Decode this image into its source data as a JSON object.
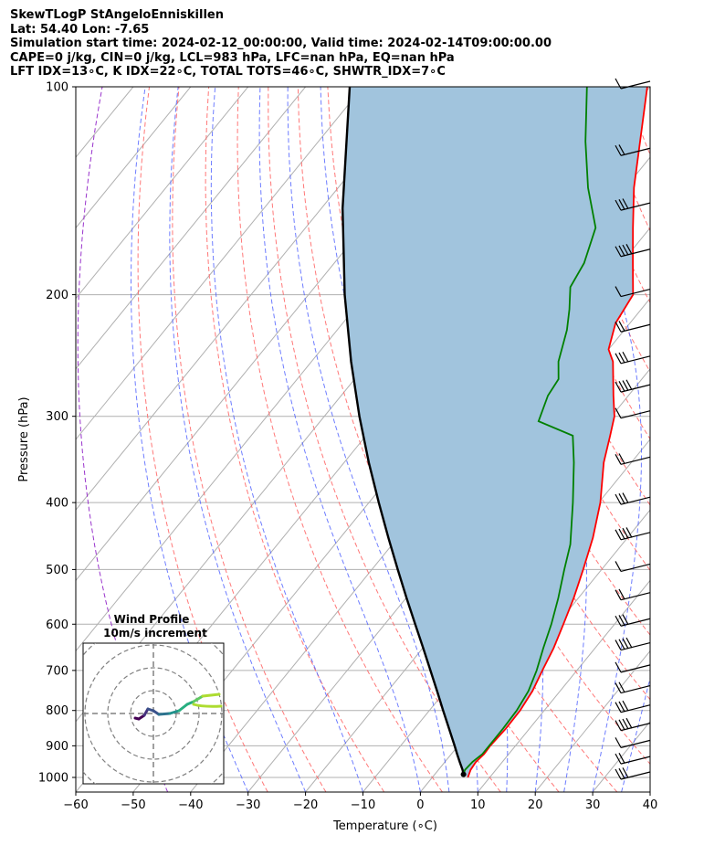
{
  "header": {
    "title": "SkewTLogP StAngeloEnniskillen",
    "location": "Lat: 54.40   Lon: -7.65",
    "times": "Simulation start time: 2024-02-12_00:00:00, Valid time: 2024-02-14T09:00:00.00",
    "indices1": "CAPE=0 j/kg, CIN=0 j/kg, LCL=983 hPa, LFC=nan hPa, EQ=nan hPa",
    "indices2": "LFT IDX=13∘C, K IDX=22∘C, TOTAL TOTS=46∘C, SHWTR_IDX=7∘C"
  },
  "chart_data": {
    "type": "skewt-logp",
    "xlabel": "Temperature (∘C)",
    "ylabel": "Pressure (hPa)",
    "xlim": [
      -60,
      40
    ],
    "ylim": [
      1050,
      100
    ],
    "x_ticks": [
      -60,
      -50,
      -40,
      -30,
      -20,
      -10,
      0,
      10,
      20,
      30,
      40
    ],
    "y_ticks": [
      100,
      200,
      300,
      400,
      500,
      600,
      700,
      800,
      900,
      1000
    ],
    "grid": true,
    "colors": {
      "temperature": "#ff0000",
      "dewpoint": "#008000",
      "parcel": "#000000",
      "fill": "#a1c4dd",
      "dry_adiabat": "#ff6060",
      "moist_adiabat": "#4a5cff",
      "mixing_ratio": "#aaaaaa",
      "wet_bulb_zero": "#9933cc"
    },
    "temperature": [
      [
        1000,
        6.2
      ],
      [
        975,
        5.6
      ],
      [
        950,
        5.4
      ],
      [
        925,
        5.7
      ],
      [
        900,
        5.6
      ],
      [
        850,
        5.9
      ],
      [
        800,
        5.8
      ],
      [
        750,
        5.2
      ],
      [
        700,
        4.0
      ],
      [
        650,
        2.8
      ],
      [
        600,
        1.1
      ],
      [
        550,
        -0.8
      ],
      [
        500,
        -3.2
      ],
      [
        450,
        -6.0
      ],
      [
        400,
        -9.7
      ],
      [
        350,
        -14.8
      ],
      [
        320,
        -17.5
      ],
      [
        300,
        -19.5
      ],
      [
        280,
        -22.6
      ],
      [
        250,
        -27.5
      ],
      [
        240,
        -30.0
      ],
      [
        220,
        -32.5
      ],
      [
        200,
        -33.5
      ],
      [
        180,
        -38.0
      ],
      [
        160,
        -43.0
      ],
      [
        140,
        -48.5
      ],
      [
        120,
        -54.0
      ],
      [
        100,
        -60.5
      ]
    ],
    "dewpoint": [
      [
        990,
        5.0
      ],
      [
        975,
        4.6
      ],
      [
        950,
        4.8
      ],
      [
        925,
        5.4
      ],
      [
        900,
        5.4
      ],
      [
        850,
        5.4
      ],
      [
        800,
        5.2
      ],
      [
        750,
        4.5
      ],
      [
        700,
        3.0
      ],
      [
        650,
        1.0
      ],
      [
        600,
        -1.0
      ],
      [
        550,
        -3.5
      ],
      [
        500,
        -6.5
      ],
      [
        460,
        -9.0
      ],
      [
        400,
        -14.5
      ],
      [
        350,
        -20.0
      ],
      [
        320,
        -24.0
      ],
      [
        305,
        -32.0
      ],
      [
        280,
        -34.0
      ],
      [
        265,
        -34.5
      ],
      [
        250,
        -37.0
      ],
      [
        225,
        -40.0
      ],
      [
        210,
        -42.5
      ],
      [
        195,
        -45.5
      ],
      [
        180,
        -46.5
      ],
      [
        160,
        -49.5
      ],
      [
        140,
        -56.5
      ],
      [
        120,
        -63.5
      ],
      [
        100,
        -71.0
      ]
    ],
    "parcel": [
      [
        990,
        5.0
      ],
      [
        975,
        4.2
      ],
      [
        950,
        2.6
      ],
      [
        925,
        1.0
      ],
      [
        900,
        -0.6
      ],
      [
        850,
        -4.0
      ],
      [
        800,
        -7.6
      ],
      [
        750,
        -11.4
      ],
      [
        700,
        -15.5
      ],
      [
        650,
        -19.9
      ],
      [
        600,
        -24.7
      ],
      [
        550,
        -29.9
      ],
      [
        500,
        -35.5
      ],
      [
        450,
        -41.6
      ],
      [
        400,
        -48.3
      ],
      [
        350,
        -55.7
      ],
      [
        300,
        -63.9
      ],
      [
        250,
        -73.1
      ],
      [
        200,
        -83.7
      ],
      [
        150,
        -96.3
      ],
      [
        100,
        -112.3
      ]
    ],
    "wind_barb_levels": [
      100,
      125,
      150,
      175,
      200,
      225,
      250,
      275,
      300,
      350,
      400,
      450,
      500,
      550,
      600,
      650,
      700,
      750,
      800,
      850,
      900,
      950,
      1000
    ],
    "wind_profile": {
      "title": "Wind Profile",
      "subtitle": "10m/s increment",
      "rings_ms": [
        10,
        20,
        30,
        40
      ]
    }
  }
}
